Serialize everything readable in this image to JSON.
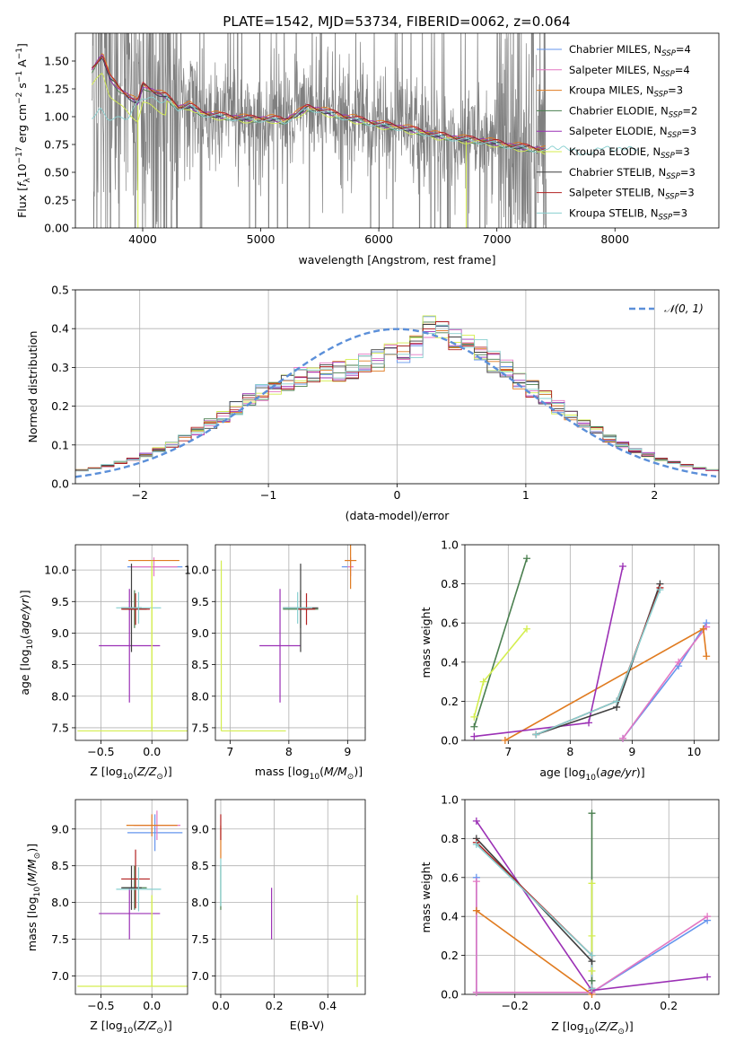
{
  "colors": {
    "Chabrier MILES": "#6495ed",
    "Salpeter MILES": "#e377c2",
    "Kroupa MILES": "#e07b20",
    "Chabrier ELODIE": "#4a7f4f",
    "Salpeter ELODIE": "#9b30b5",
    "Kroupa ELODIE": "#d4ee4f",
    "Chabrier STELIB": "#3f3f3f",
    "Salpeter STELIB": "#b22222",
    "Kroupa STELIB": "#87cfcf",
    "data": "#808080",
    "normal": "#5b8fd9"
  },
  "chart_data": [
    {
      "id": "spectrum",
      "type": "line",
      "title": "PLATE=1542, MJD=53734, FIBERID=0062, z=0.064",
      "xlabel": "wavelength [Angstrom, rest frame]",
      "ylabel": "Flux [f_λ 10^-17 erg cm^-2 s^-1 A^-1]",
      "xlim": [
        3430,
        8880
      ],
      "ylim": [
        0,
        1.75
      ],
      "xticks": [
        4000,
        5000,
        6000,
        7000,
        8000
      ],
      "yticks": [
        0.0,
        0.25,
        0.5,
        0.75,
        1.0,
        1.25,
        1.5
      ],
      "ytick_labels": [
        "0.00",
        "0.25",
        "0.50",
        "0.75",
        "1.00",
        "1.25",
        "1.50"
      ],
      "legend_position": "top-right",
      "legend": [
        {
          "label": "Chabrier MILES, N",
          "sub": "SSP",
          "tail": "=4",
          "color_key": "Chabrier MILES"
        },
        {
          "label": "Salpeter MILES, N",
          "sub": "SSP",
          "tail": "=4",
          "color_key": "Salpeter MILES"
        },
        {
          "label": "Kroupa MILES, N",
          "sub": "SSP",
          "tail": "=3",
          "color_key": "Kroupa MILES"
        },
        {
          "label": "Chabrier ELODIE, N",
          "sub": "SSP",
          "tail": "=2",
          "color_key": "Chabrier ELODIE"
        },
        {
          "label": "Salpeter ELODIE, N",
          "sub": "SSP",
          "tail": "=3",
          "color_key": "Salpeter ELODIE"
        },
        {
          "label": "Kroupa ELODIE, N",
          "sub": "SSP",
          "tail": "=3",
          "color_key": "Kroupa ELODIE"
        },
        {
          "label": "Chabrier STELIB, N",
          "sub": "SSP",
          "tail": "=3",
          "color_key": "Chabrier STELIB"
        },
        {
          "label": "Salpeter STELIB, N",
          "sub": "SSP",
          "tail": "=3",
          "color_key": "Salpeter STELIB"
        },
        {
          "label": "Kroupa STELIB, N",
          "sub": "SSP",
          "tail": "=3",
          "color_key": "Kroupa STELIB"
        }
      ],
      "data_range": [
        3570,
        7420
      ],
      "model_continuum": [
        [
          3570,
          1.42
        ],
        [
          3660,
          1.55
        ],
        [
          3720,
          1.35
        ],
        [
          3800,
          1.25
        ],
        [
          3880,
          1.18
        ],
        [
          3960,
          1.12
        ],
        [
          4000,
          1.28
        ],
        [
          4100,
          1.22
        ],
        [
          4200,
          1.18
        ],
        [
          4300,
          1.08
        ],
        [
          4400,
          1.1
        ],
        [
          4500,
          1.03
        ],
        [
          4700,
          1.0
        ],
        [
          4900,
          0.98
        ],
        [
          5100,
          0.98
        ],
        [
          5200,
          0.96
        ],
        [
          5400,
          1.08
        ],
        [
          5500,
          1.06
        ],
        [
          5700,
          1.0
        ],
        [
          6000,
          0.93
        ],
        [
          6200,
          0.9
        ],
        [
          6500,
          0.83
        ],
        [
          6700,
          0.8
        ],
        [
          6900,
          0.78
        ],
        [
          7100,
          0.74
        ],
        [
          7400,
          0.7
        ]
      ],
      "kroupa_elodie_offset_below_4200": -0.13,
      "kroupa_stelib_extra": [
        [
          3570,
          1.0
        ],
        [
          3640,
          1.06
        ],
        [
          3700,
          0.99
        ],
        [
          3800,
          0.98
        ],
        [
          3880,
          1.0
        ],
        [
          4000,
          1.18
        ],
        [
          4100,
          1.15
        ],
        [
          4200,
          1.14
        ],
        [
          7400,
          0.72
        ],
        [
          7600,
          0.72
        ],
        [
          7750,
          0.65
        ],
        [
          7900,
          0.73
        ],
        [
          8000,
          0.7
        ],
        [
          8100,
          0.72
        ],
        [
          8200,
          0.71
        ]
      ]
    },
    {
      "id": "residuals",
      "type": "step",
      "xlabel": "(data-model)/error",
      "ylabel": "Normed distribution",
      "xlim": [
        -2.5,
        2.5
      ],
      "ylim": [
        0,
        0.5
      ],
      "xticks": [
        -2,
        -1,
        0,
        1,
        2
      ],
      "yticks": [
        0.0,
        0.1,
        0.2,
        0.3,
        0.4,
        0.5
      ],
      "legend": [
        {
          "label": "𝒩(0, 1)",
          "style": "dashed",
          "color_key": "normal"
        }
      ],
      "legend_position": "top-right",
      "bin_width": 0.1,
      "bin_start": -2.5
    },
    {
      "id": "age_vs_Z",
      "type": "errorbar",
      "xlabel": "Z [log10(Z/Z⊙)]",
      "ylabel": "age  [log10(age/yr)]",
      "xlim": [
        -0.75,
        0.35
      ],
      "ylim": [
        7.3,
        10.4
      ],
      "xticks": [
        -0.5,
        0.0
      ],
      "yticks": [
        7.5,
        8.0,
        8.5,
        9.0,
        9.5,
        10.0
      ],
      "points": [
        {
          "model": "Chabrier MILES",
          "x": 0.03,
          "xerr": 0.27,
          "y": 10.05,
          "yerr": 0.0
        },
        {
          "model": "Salpeter MILES",
          "x": 0.02,
          "xerr": 0.23,
          "y": 10.05,
          "yerr": 0.15
        },
        {
          "model": "Kroupa MILES",
          "x": 0.02,
          "xerr": 0.25,
          "y": 10.15,
          "yerr": 0.0
        },
        {
          "model": "Chabrier ELODIE",
          "x": -0.17,
          "xerr": 0.12,
          "y": 9.38,
          "yerr": 0.3
        },
        {
          "model": "Salpeter ELODIE",
          "x": -0.22,
          "xerr": 0.3,
          "y": 8.8,
          "yerr": 0.9
        },
        {
          "model": "Kroupa ELODIE",
          "x": 0.0,
          "xerr": 0.73,
          "y": 7.45,
          "yerr": 0.0
        },
        {
          "model": "Chabrier STELIB",
          "x": -0.2,
          "xerr": 0.1,
          "y": 9.4,
          "yerr": 0.7
        },
        {
          "model": "Salpeter STELIB",
          "x": -0.16,
          "xerr": 0.14,
          "y": 9.38,
          "yerr": 0.25
        },
        {
          "model": "Kroupa STELIB",
          "x": -0.13,
          "xerr": 0.22,
          "y": 9.4,
          "yerr": 0.25
        }
      ],
      "vertical_line": {
        "model": "Kroupa ELODIE",
        "x": 0.0,
        "y": [
          7.45,
          10.15
        ]
      }
    },
    {
      "id": "age_vs_mass",
      "type": "errorbar",
      "xlabel": "mass [log10(M/M⊙)]",
      "ylabel": "",
      "xlim": [
        6.75,
        9.3
      ],
      "ylim": [
        7.3,
        10.4
      ],
      "xticks": [
        7,
        8,
        9
      ],
      "yticks": [
        7.5,
        8.0,
        8.5,
        9.0,
        9.5,
        10.0
      ],
      "points": [
        {
          "model": "Chabrier MILES",
          "x": 8.95,
          "xerr": 0.05,
          "y": 10.05,
          "yerr": 0.0
        },
        {
          "model": "Salpeter MILES",
          "x": 9.05,
          "xerr": 0.05,
          "y": 10.05,
          "yerr": 0.15
        },
        {
          "model": "Kroupa MILES",
          "x": 9.05,
          "xerr": 0.1,
          "y": 10.15,
          "yerr": 0.45
        },
        {
          "model": "Chabrier ELODIE",
          "x": 8.2,
          "xerr": 0.3,
          "y": 9.38,
          "yerr": 0.3
        },
        {
          "model": "Salpeter ELODIE",
          "x": 7.85,
          "xerr": 0.35,
          "y": 8.8,
          "yerr": 0.9
        },
        {
          "model": "Kroupa ELODIE",
          "x": 6.85,
          "xerr": 0.0,
          "y": 8.8,
          "yerr": 1.35
        },
        {
          "model": "Chabrier STELIB",
          "x": 8.2,
          "xerr": 0.3,
          "y": 9.4,
          "yerr": 0.7
        },
        {
          "model": "Salpeter STELIB",
          "x": 8.3,
          "xerr": 0.15,
          "y": 9.38,
          "yerr": 0.25
        },
        {
          "model": "Kroupa STELIB",
          "x": 8.15,
          "xerr": 0.25,
          "y": 9.4,
          "yerr": 0.25
        }
      ],
      "extra_lines": [
        {
          "model": "Kroupa ELODIE",
          "x": [
            6.85,
            7.95
          ],
          "y": 7.45
        }
      ]
    },
    {
      "id": "weight_vs_age",
      "type": "line",
      "xlabel": "age  [log10(age/yr)]",
      "ylabel": "mass weight",
      "xlim": [
        6.3,
        10.4
      ],
      "ylim": [
        0,
        1.0
      ],
      "xticks": [
        7,
        8,
        9,
        10
      ],
      "yticks": [
        0.0,
        0.2,
        0.4,
        0.6,
        0.8,
        1.0
      ],
      "series": [
        {
          "model": "Chabrier MILES",
          "x": [
            8.85,
            9.75,
            10.2
          ],
          "y": [
            0.01,
            0.38,
            0.6
          ]
        },
        {
          "model": "Salpeter MILES",
          "x": [
            8.85,
            9.75,
            10.2
          ],
          "y": [
            0.01,
            0.4,
            0.58
          ]
        },
        {
          "model": "Kroupa MILES",
          "x": [
            6.95,
            10.15,
            10.2
          ],
          "y": [
            0.0,
            0.57,
            0.43
          ]
        },
        {
          "model": "Chabrier ELODIE",
          "x": [
            6.45,
            7.3
          ],
          "y": [
            0.07,
            0.93
          ]
        },
        {
          "model": "Salpeter ELODIE",
          "x": [
            6.45,
            8.3,
            8.85
          ],
          "y": [
            0.02,
            0.09,
            0.89
          ]
        },
        {
          "model": "Kroupa ELODIE",
          "x": [
            6.45,
            6.6,
            7.3
          ],
          "y": [
            0.12,
            0.3,
            0.57
          ]
        },
        {
          "model": "Chabrier STELIB",
          "x": [
            7.45,
            8.75,
            9.45
          ],
          "y": [
            0.03,
            0.17,
            0.8
          ]
        },
        {
          "model": "Salpeter STELIB",
          "x": [
            7.45,
            8.75,
            9.45
          ],
          "y": [
            0.03,
            0.2,
            0.78
          ]
        },
        {
          "model": "Kroupa STELIB",
          "x": [
            7.45,
            8.75,
            9.45
          ],
          "y": [
            0.03,
            0.2,
            0.77
          ]
        }
      ]
    },
    {
      "id": "mass_vs_Z",
      "type": "errorbar",
      "xlabel": "Z [log10(Z/Z⊙)]",
      "ylabel": "mass [log10(M/M⊙)]",
      "xlim": [
        -0.75,
        0.35
      ],
      "ylim": [
        6.75,
        9.4
      ],
      "xticks": [
        -0.5,
        0.0
      ],
      "yticks": [
        7.0,
        7.5,
        8.0,
        8.5,
        9.0
      ],
      "points": [
        {
          "model": "Chabrier MILES",
          "x": 0.03,
          "xerr": 0.27,
          "y": 8.95,
          "yerr": 0.25
        },
        {
          "model": "Salpeter MILES",
          "x": 0.05,
          "xerr": 0.23,
          "y": 9.05,
          "yerr": 0.2
        },
        {
          "model": "Kroupa MILES",
          "x": 0.0,
          "xerr": 0.25,
          "y": 9.05,
          "yerr": 0.15
        },
        {
          "model": "Chabrier ELODIE",
          "x": -0.17,
          "xerr": 0.12,
          "y": 8.2,
          "yerr": 0.3
        },
        {
          "model": "Salpeter ELODIE",
          "x": -0.22,
          "xerr": 0.3,
          "y": 7.85,
          "yerr": 0.35
        },
        {
          "model": "Kroupa ELODIE",
          "x": 0.0,
          "xerr": 0.73,
          "y": 6.86,
          "yerr": 0.0
        },
        {
          "model": "Chabrier STELIB",
          "x": -0.2,
          "xerr": 0.1,
          "y": 8.2,
          "yerr": 0.3
        },
        {
          "model": "Salpeter STELIB",
          "x": -0.16,
          "xerr": 0.14,
          "y": 8.32,
          "yerr": 0.4
        },
        {
          "model": "Kroupa STELIB",
          "x": -0.13,
          "xerr": 0.22,
          "y": 8.18,
          "yerr": 0.3
        }
      ],
      "vertical_line": {
        "model": "Kroupa ELODIE",
        "x": 0.0,
        "y": [
          6.86,
          8.1
        ]
      }
    },
    {
      "id": "mass_vs_ebv",
      "type": "errorbar",
      "xlabel": "E(B-V)",
      "ylabel": "",
      "xlim": [
        -0.02,
        0.54
      ],
      "ylim": [
        6.75,
        9.4
      ],
      "xticks": [
        0.0,
        0.2,
        0.4
      ],
      "yticks": [
        7.0,
        7.5,
        8.0,
        8.5,
        9.0
      ],
      "vlines": [
        {
          "model": "Kroupa MILES",
          "x": 0.0,
          "y": [
            8.6,
            9.05
          ]
        },
        {
          "model": "Salpeter STELIB",
          "x": 0.0,
          "y": [
            8.85,
            9.2
          ]
        },
        {
          "model": "Chabrier ELODIE",
          "x": 0.0,
          "y": [
            7.9,
            8.5
          ]
        },
        {
          "model": "Kroupa STELIB",
          "x": 0.0,
          "y": [
            7.95,
            8.6
          ]
        },
        {
          "model": "Salpeter ELODIE",
          "x": 0.19,
          "y": [
            7.5,
            8.2
          ]
        },
        {
          "model": "Kroupa ELODIE",
          "x": 0.51,
          "y": [
            6.85,
            8.1
          ]
        }
      ]
    },
    {
      "id": "weight_vs_Z",
      "type": "line",
      "xlabel": "Z [log10(Z/Z⊙)]",
      "ylabel": "mass weight",
      "xlim": [
        -0.33,
        0.33
      ],
      "ylim": [
        0,
        1.0
      ],
      "xticks": [
        -0.2,
        0.0,
        0.2
      ],
      "yticks": [
        0.0,
        0.2,
        0.4,
        0.6,
        0.8,
        1.0
      ],
      "series": [
        {
          "model": "Chabrier MILES",
          "x": [
            -0.3,
            -0.3,
            0.0,
            0.3
          ],
          "y": [
            0.6,
            0.01,
            0.01,
            0.38
          ]
        },
        {
          "model": "Salpeter MILES",
          "x": [
            -0.3,
            -0.3,
            0.0,
            0.3
          ],
          "y": [
            0.58,
            0.01,
            0.01,
            0.4
          ]
        },
        {
          "model": "Kroupa MILES",
          "x": [
            -0.3,
            0.0
          ],
          "y": [
            0.43,
            0.0
          ]
        },
        {
          "model": "Chabrier ELODIE",
          "x": [
            0.0,
            0.0
          ],
          "y": [
            0.93,
            0.07
          ]
        },
        {
          "model": "Salpeter ELODIE",
          "x": [
            -0.3,
            0.0,
            0.3
          ],
          "y": [
            0.89,
            0.02,
            0.09
          ]
        },
        {
          "model": "Kroupa ELODIE",
          "x": [
            0.0,
            0.0,
            0.0
          ],
          "y": [
            0.57,
            0.3,
            0.12
          ]
        },
        {
          "model": "Chabrier STELIB",
          "x": [
            -0.3,
            0.0,
            0.0
          ],
          "y": [
            0.8,
            0.17,
            0.03
          ]
        },
        {
          "model": "Salpeter STELIB",
          "x": [
            -0.3,
            0.0,
            0.0
          ],
          "y": [
            0.78,
            0.2,
            0.03
          ]
        },
        {
          "model": "Kroupa STELIB",
          "x": [
            -0.3,
            0.0,
            0.0
          ],
          "y": [
            0.77,
            0.2,
            0.03
          ]
        }
      ]
    }
  ]
}
